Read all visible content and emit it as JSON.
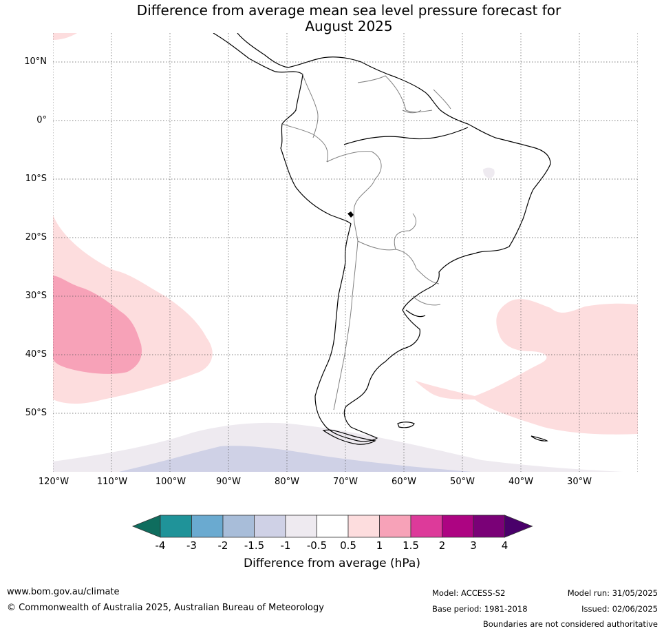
{
  "title": {
    "line1": "Difference from average mean sea level pressure forecast for",
    "line2": "August 2025"
  },
  "map": {
    "lat_labels": [
      "10°N",
      "0°",
      "10°S",
      "20°S",
      "30°S",
      "40°S",
      "50°S"
    ],
    "lon_labels": [
      "120°W",
      "110°W",
      "100°W",
      "90°W",
      "80°W",
      "70°W",
      "60°W",
      "50°W",
      "40°W",
      "30°W"
    ],
    "extent": {
      "lon": [
        -120,
        -20
      ],
      "lat": [
        -60,
        15
      ]
    },
    "gridlines": true,
    "colors": {
      "coast": "#000000",
      "borders": "#808080",
      "grid": "#555555"
    }
  },
  "colorbar": {
    "ticks": [
      "-4",
      "-3",
      "-2",
      "-1.5",
      "-1",
      "-0.5",
      "0.5",
      "1",
      "1.5",
      "2",
      "3",
      "4"
    ],
    "colors": [
      "#0f6d5e",
      "#1f9399",
      "#6aaad0",
      "#a8bdd9",
      "#cfd1e6",
      "#eeeaf0",
      "#ffffff",
      "#fdddde",
      "#f7a2b8",
      "#dd3a9a",
      "#ad0482",
      "#7a0177",
      "#49006a"
    ],
    "label": "Difference from average (hPa)"
  },
  "footer": {
    "website": "www.bom.gov.au/climate",
    "copyright": "© Commonwealth of Australia 2025, Australian Bureau of Meteorology",
    "model": "Model: ACCESS-S2",
    "base_period": "Base period: 1981-2018",
    "model_run": "Model run: 31/05/2025",
    "issued": "Issued: 02/06/2025",
    "boundaries": "Boundaries are not considered authoritative"
  }
}
